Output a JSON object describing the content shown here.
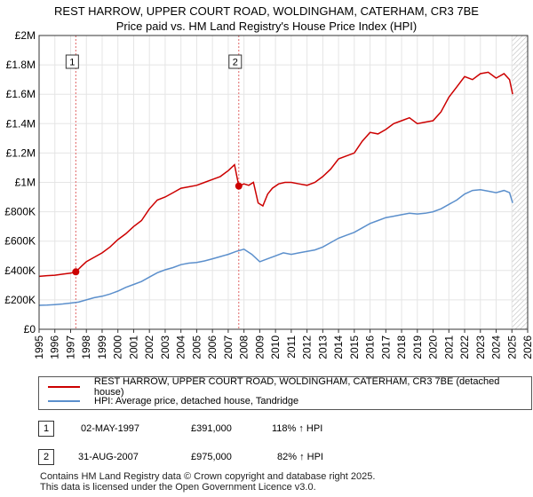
{
  "title_line1": "REST HARROW, UPPER COURT ROAD, WOLDINGHAM, CATERHAM, CR3 7BE",
  "title_line2": "Price paid vs. HM Land Registry's House Price Index (HPI)",
  "colors": {
    "property": "#cc0000",
    "hpi": "#5b8fcc",
    "grid": "#e5e5e5",
    "marker_line": "#e06666",
    "hatch": "#bbbbbb"
  },
  "legend": {
    "property_label": "REST HARROW, UPPER COURT ROAD, WOLDINGHAM, CATERHAM, CR3 7BE (detached house)",
    "hpi_label": "HPI: Average price, detached house, Tandridge"
  },
  "transactions": [
    {
      "num": "1",
      "date": "02-MAY-1997",
      "price": "£391,000",
      "hpi_change": "118% ↑ HPI"
    },
    {
      "num": "2",
      "date": "31-AUG-2007",
      "price": "£975,000",
      "hpi_change": "82% ↑ HPI"
    }
  ],
  "footer": {
    "line1": "Contains HM Land Registry data © Crown copyright and database right 2025.",
    "line2": "This data is licensed under the Open Government Licence v3.0."
  },
  "chart_data": {
    "type": "line",
    "title": "Price paid vs. HM Land Registry's House Price Index (HPI)",
    "xlabel": "",
    "ylabel": "",
    "xlim": [
      1995,
      2026
    ],
    "ylim": [
      0,
      2000000
    ],
    "yticks": [
      0,
      200000,
      400000,
      600000,
      800000,
      1000000,
      1200000,
      1400000,
      1600000,
      1800000,
      2000000
    ],
    "ytick_labels": [
      "£0",
      "£200K",
      "£400K",
      "£600K",
      "£800K",
      "£1M",
      "£1.2M",
      "£1.4M",
      "£1.6M",
      "£1.8M",
      "£2M"
    ],
    "xticks": [
      1995,
      1996,
      1997,
      1998,
      1999,
      2000,
      2001,
      2002,
      2003,
      2004,
      2005,
      2006,
      2007,
      2008,
      2009,
      2010,
      2011,
      2012,
      2013,
      2014,
      2015,
      2016,
      2017,
      2018,
      2019,
      2020,
      2021,
      2022,
      2023,
      2024,
      2025,
      2026
    ],
    "projection_start": 2025.0,
    "sales": [
      {
        "label": "1",
        "x": 2.5,
        "year": 1997.33,
        "price": 391000
      },
      {
        "label": "2",
        "x": 12.67,
        "year": 2007.67,
        "price": 975000
      }
    ],
    "series": [
      {
        "name": "REST HARROW, UPPER COURT ROAD, WOLDINGHAM, CATERHAM, CR3 7BE (detached house)",
        "x": [
          1995.0,
          1995.5,
          1996.0,
          1996.5,
          1997.0,
          1997.33,
          1997.7,
          1998.0,
          1998.5,
          1999.0,
          1999.5,
          2000.0,
          2000.5,
          2001.0,
          2001.5,
          2002.0,
          2002.5,
          2003.0,
          2003.5,
          2004.0,
          2004.5,
          2005.0,
          2005.5,
          2006.0,
          2006.5,
          2007.0,
          2007.4,
          2007.67,
          2008.0,
          2008.3,
          2008.6,
          2008.9,
          2009.2,
          2009.5,
          2009.8,
          2010.2,
          2010.6,
          2011.0,
          2011.5,
          2012.0,
          2012.5,
          2013.0,
          2013.5,
          2014.0,
          2014.5,
          2015.0,
          2015.5,
          2016.0,
          2016.5,
          2017.0,
          2017.5,
          2018.0,
          2018.5,
          2019.0,
          2019.5,
          2020.0,
          2020.5,
          2021.0,
          2021.5,
          2022.0,
          2022.5,
          2023.0,
          2023.5,
          2024.0,
          2024.5,
          2024.85,
          2025.05
        ],
        "y": [
          360000,
          365000,
          368000,
          375000,
          382000,
          391000,
          430000,
          460000,
          490000,
          520000,
          560000,
          610000,
          650000,
          700000,
          740000,
          820000,
          880000,
          900000,
          930000,
          960000,
          970000,
          980000,
          1000000,
          1020000,
          1040000,
          1080000,
          1120000,
          975000,
          990000,
          980000,
          1000000,
          860000,
          840000,
          920000,
          960000,
          990000,
          1000000,
          1000000,
          990000,
          980000,
          1000000,
          1040000,
          1090000,
          1160000,
          1180000,
          1200000,
          1280000,
          1340000,
          1330000,
          1360000,
          1400000,
          1420000,
          1440000,
          1400000,
          1410000,
          1420000,
          1480000,
          1580000,
          1650000,
          1720000,
          1700000,
          1740000,
          1750000,
          1710000,
          1740000,
          1700000,
          1600000
        ]
      },
      {
        "name": "HPI: Average price, detached house, Tandridge",
        "x": [
          1995.0,
          1995.5,
          1996.0,
          1996.5,
          1997.0,
          1997.5,
          1998.0,
          1998.5,
          1999.0,
          1999.5,
          2000.0,
          2000.5,
          2001.0,
          2001.5,
          2002.0,
          2002.5,
          2003.0,
          2003.5,
          2004.0,
          2004.5,
          2005.0,
          2005.5,
          2006.0,
          2006.5,
          2007.0,
          2007.5,
          2008.0,
          2008.5,
          2009.0,
          2009.5,
          2010.0,
          2010.5,
          2011.0,
          2011.5,
          2012.0,
          2012.5,
          2013.0,
          2013.5,
          2014.0,
          2014.5,
          2015.0,
          2015.5,
          2016.0,
          2016.5,
          2017.0,
          2017.5,
          2018.0,
          2018.5,
          2019.0,
          2019.5,
          2020.0,
          2020.5,
          2021.0,
          2021.5,
          2022.0,
          2022.5,
          2023.0,
          2023.5,
          2024.0,
          2024.5,
          2024.85,
          2025.05
        ],
        "y": [
          163000,
          165000,
          168000,
          172000,
          178000,
          185000,
          200000,
          215000,
          225000,
          240000,
          260000,
          285000,
          305000,
          325000,
          355000,
          385000,
          405000,
          420000,
          440000,
          450000,
          455000,
          465000,
          480000,
          495000,
          510000,
          530000,
          545000,
          510000,
          460000,
          480000,
          500000,
          520000,
          510000,
          520000,
          530000,
          540000,
          560000,
          590000,
          620000,
          640000,
          660000,
          690000,
          720000,
          740000,
          760000,
          770000,
          780000,
          790000,
          785000,
          790000,
          800000,
          820000,
          850000,
          880000,
          920000,
          945000,
          950000,
          940000,
          930000,
          945000,
          930000,
          860000
        ]
      }
    ]
  }
}
